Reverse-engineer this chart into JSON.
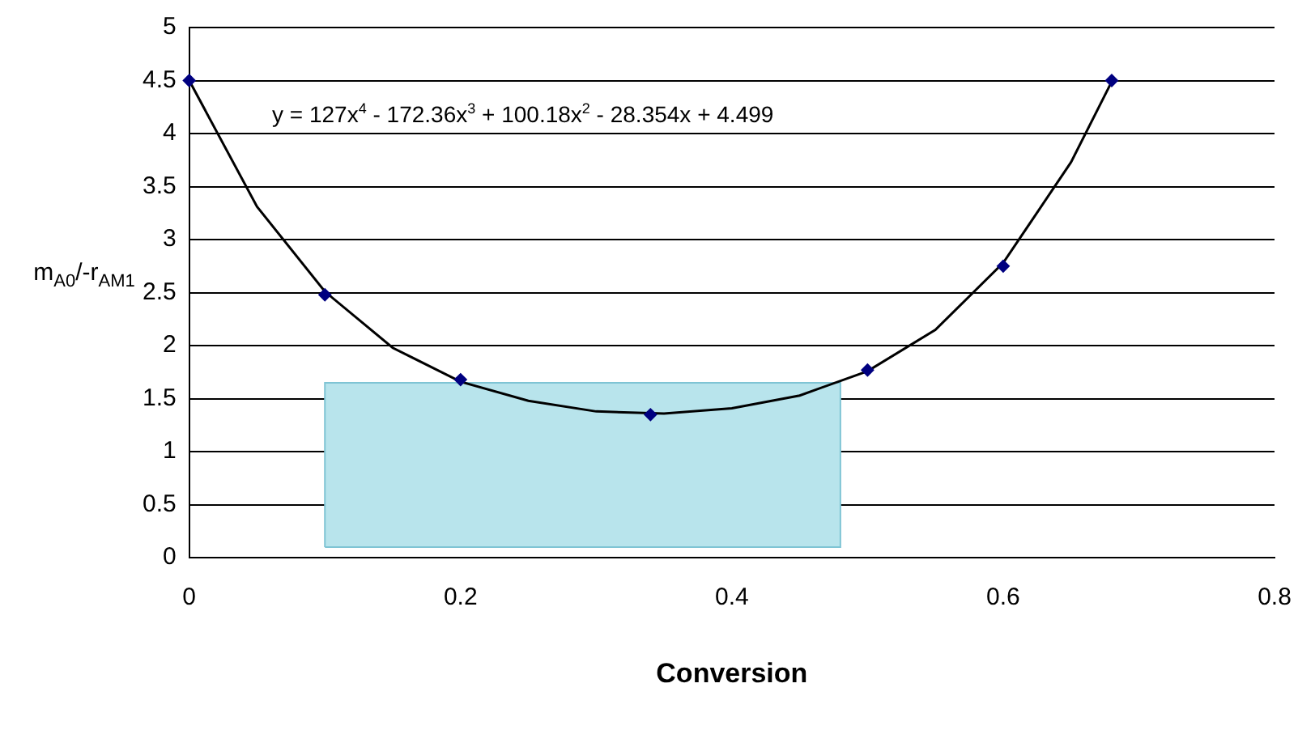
{
  "chart_data": {
    "type": "scatter",
    "xlabel": "Conversion",
    "ylabel": "m$_{A0}$/-r$_{AM1}$",
    "xlim": [
      0,
      0.8
    ],
    "xticks": [
      0,
      0.2,
      0.4,
      0.6,
      0.8
    ],
    "ylim": [
      0,
      5
    ],
    "yticks": [
      0,
      0.5,
      1,
      1.5,
      2,
      2.5,
      3,
      3.5,
      4,
      4.5,
      5
    ],
    "grid": "y",
    "legend": false,
    "annotations": [
      "y = 127x$^{4}$ - 172.36x$^{3}$ + 100.18x$^{2}$ - 28.354x + 4.499"
    ],
    "series": [
      {
        "type": "area",
        "color": "#b8e4ec",
        "x": [
          0.1,
          0.1,
          0.48,
          0.48,
          0.1
        ],
        "values": [
          0.1,
          1.65,
          1.65,
          0.1,
          0.1
        ]
      },
      {
        "type": "line",
        "color": "#000000",
        "marker": "none",
        "x": [
          0,
          0.05,
          0.1,
          0.15,
          0.2,
          0.25,
          0.3,
          0.35,
          0.4,
          0.45,
          0.5,
          0.55,
          0.6,
          0.65,
          0.68
        ],
        "values": [
          4.5,
          3.31,
          2.51,
          1.98,
          1.66,
          1.48,
          1.38,
          1.36,
          1.41,
          1.53,
          1.76,
          2.15,
          2.78,
          3.73,
          4.49
        ]
      },
      {
        "type": "scatter",
        "color": "#000080",
        "marker": "diamond",
        "x": [
          0,
          0.1,
          0.2,
          0.34,
          0.5,
          0.6,
          0.68
        ],
        "values": [
          4.5,
          2.48,
          1.68,
          1.35,
          1.77,
          2.75,
          4.5
        ]
      }
    ]
  }
}
